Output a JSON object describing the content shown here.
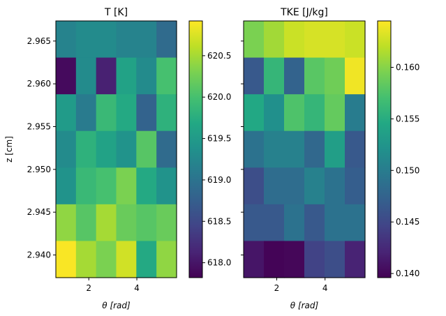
{
  "chart_data": [
    {
      "type": "heatmap",
      "title": "T [K]",
      "xlabel": "θ [rad]",
      "ylabel": "z [cm]",
      "x_centers": [
        1.047,
        1.885,
        2.723,
        3.561,
        4.398,
        5.236
      ],
      "xlim": [
        0.628,
        5.655
      ],
      "x_ticks": [
        2,
        4
      ],
      "x_tick_labels": [
        "2",
        "4"
      ],
      "y_centers": [
        2.9651,
        2.9606,
        2.9561,
        2.9516,
        2.9471,
        2.9426,
        2.9381
      ],
      "ylim": [
        2.93735,
        2.96735
      ],
      "y_ticks": [
        2.94,
        2.945,
        2.95,
        2.955,
        2.96,
        2.965
      ],
      "y_tick_labels": [
        "2.940",
        "2.945",
        "2.950",
        "2.955",
        "2.960",
        "2.965"
      ],
      "values": [
        [
          619.2,
          619.3,
          619.3,
          619.2,
          619.2,
          618.9
        ],
        [
          617.9,
          619.3,
          618.1,
          619.6,
          619.3,
          620.0
        ],
        [
          619.5,
          619.1,
          619.9,
          619.7,
          618.8,
          619.8
        ],
        [
          619.3,
          619.8,
          619.6,
          619.4,
          620.1,
          618.9
        ],
        [
          619.4,
          619.9,
          620.0,
          620.3,
          619.7,
          619.4
        ],
        [
          620.4,
          620.1,
          620.5,
          620.2,
          620.1,
          620.2
        ],
        [
          620.9,
          620.5,
          620.3,
          620.7,
          619.7,
          620.4
        ]
      ],
      "colorbar": {
        "vmin": 617.82,
        "vmax": 620.92,
        "ticks": [
          618.0,
          618.5,
          619.0,
          619.5,
          620.0,
          620.5
        ],
        "tick_labels": [
          "618.0",
          "618.5",
          "619.0",
          "619.5",
          "620.0",
          "620.5"
        ]
      },
      "colormap": "viridis"
    },
    {
      "type": "heatmap",
      "title": "TKE [J/kg]",
      "xlabel": "θ [rad]",
      "ylabel": "",
      "x_centers": [
        1.047,
        1.885,
        2.723,
        3.561,
        4.398,
        5.236
      ],
      "xlim": [
        0.628,
        5.655
      ],
      "x_ticks": [
        2,
        4
      ],
      "x_tick_labels": [
        "2",
        "4"
      ],
      "y_centers": [
        2.9651,
        2.9606,
        2.9561,
        2.9516,
        2.9471,
        2.9426,
        2.9381
      ],
      "ylim": [
        2.93735,
        2.96735
      ],
      "y_ticks": [
        2.94,
        2.945,
        2.95,
        2.955,
        2.96,
        2.965
      ],
      "y_tick_labels": [
        "",
        "",
        "",
        "",
        "",
        ""
      ],
      "values": [
        [
          0.1595,
          0.161,
          0.1625,
          0.163,
          0.163,
          0.1625
        ],
        [
          0.1465,
          0.156,
          0.1475,
          0.158,
          0.159,
          0.164
        ],
        [
          0.1545,
          0.152,
          0.1575,
          0.156,
          0.1585,
          0.15
        ],
        [
          0.149,
          0.1505,
          0.1505,
          0.148,
          0.1535,
          0.1465
        ],
        [
          0.1455,
          0.1485,
          0.1485,
          0.1505,
          0.149,
          0.147
        ],
        [
          0.1465,
          0.1465,
          0.149,
          0.1465,
          0.149,
          0.149
        ],
        [
          0.141,
          0.1398,
          0.14,
          0.1445,
          0.1455,
          0.142
        ]
      ],
      "colorbar": {
        "vmin": 0.1396,
        "vmax": 0.1645,
        "ticks": [
          0.14,
          0.145,
          0.15,
          0.155,
          0.16
        ],
        "tick_labels": [
          "0.140",
          "0.145",
          "0.150",
          "0.155",
          "0.160"
        ]
      },
      "colormap": "viridis"
    }
  ]
}
